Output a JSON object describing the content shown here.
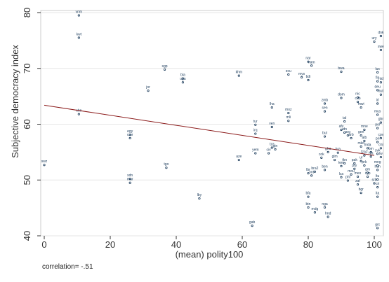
{
  "chart_data": {
    "type": "scatter",
    "xlabel": "(mean) polity100",
    "ylabel": "Subjective democracy index",
    "xlim": [
      0,
      100
    ],
    "ylim": [
      40,
      80
    ],
    "xticks": [
      "0",
      "20",
      "40",
      "60",
      "80",
      "100"
    ],
    "yticks": [
      "40",
      "50",
      "60",
      "70",
      "80"
    ],
    "fit_line": {
      "x": [
        0,
        100
      ],
      "y": [
        63.4,
        54.4
      ]
    },
    "footnote": "correlation= -.51",
    "points": [
      {
        "label": "vnm",
        "x": 10.5,
        "y": 79.5
      },
      {
        "label": "kwt",
        "x": 10.5,
        "y": 75.5
      },
      {
        "label": "chn",
        "x": 10.5,
        "y": 61.8
      },
      {
        "label": "swz",
        "x": 0,
        "y": 52.7
      },
      {
        "label": "sgp",
        "x": 36.5,
        "y": 69.8
      },
      {
        "label": "jor",
        "x": 31.5,
        "y": 66.0
      },
      {
        "label": "bla",
        "x": 42,
        "y": 68.2
      },
      {
        "label": "uga",
        "x": 42,
        "y": 67.5
      },
      {
        "label": "egy",
        "x": 26,
        "y": 58.1
      },
      {
        "label": "cmr",
        "x": 26,
        "y": 57.5
      },
      {
        "label": "tgo",
        "x": 37,
        "y": 52.2
      },
      {
        "label": "sdn",
        "x": 26,
        "y": 50.2
      },
      {
        "label": "mar",
        "x": 26,
        "y": 49.5
      },
      {
        "label": "lby",
        "x": 47,
        "y": 46.7
      },
      {
        "label": "khm",
        "x": 59,
        "y": 68.7
      },
      {
        "label": "tur",
        "x": 64,
        "y": 59.9
      },
      {
        "label": "irq",
        "x": 64,
        "y": 58.3
      },
      {
        "label": "yem",
        "x": 64,
        "y": 54.8
      },
      {
        "label": "aze",
        "x": 59,
        "y": 53.6
      },
      {
        "label": "gab",
        "x": 63,
        "y": 41.8
      },
      {
        "label": "lha",
        "x": 69,
        "y": 63.0
      },
      {
        "label": "ven",
        "x": 69,
        "y": 59.5
      },
      {
        "label": "gin",
        "x": 70,
        "y": 55.5
      },
      {
        "label": "tza",
        "x": 69,
        "y": 55.8
      },
      {
        "label": "civ",
        "x": 68,
        "y": 54.8
      },
      {
        "label": "ecu",
        "x": 74,
        "y": 68.9
      },
      {
        "label": "mys",
        "x": 78,
        "y": 68.4
      },
      {
        "label": "nar",
        "x": 80,
        "y": 71.2
      },
      {
        "label": "nam",
        "x": 81,
        "y": 70.5
      },
      {
        "label": "bdi",
        "x": 80,
        "y": 67.9
      },
      {
        "label": "moz",
        "x": 74,
        "y": 62.0
      },
      {
        "label": "mli",
        "x": 74,
        "y": 60.6
      },
      {
        "label": "zmb",
        "x": 85,
        "y": 63.7
      },
      {
        "label": "sen",
        "x": 85,
        "y": 62.3
      },
      {
        "label": "bwa",
        "x": 90,
        "y": 69.4
      },
      {
        "label": "dom",
        "x": 90,
        "y": 64.7
      },
      {
        "label": "tal",
        "x": 91,
        "y": 60.5
      },
      {
        "label": "afv",
        "x": 90,
        "y": 59.0
      },
      {
        "label": "idn",
        "x": 91,
        "y": 58.5
      },
      {
        "label": "arg",
        "x": 92,
        "y": 58.0
      },
      {
        "label": "arb",
        "x": 93,
        "y": 57.5
      },
      {
        "label": "bul",
        "x": 85,
        "y": 57.8
      },
      {
        "label": "gha",
        "x": 86,
        "y": 55.0
      },
      {
        "label": "cok",
        "x": 84,
        "y": 54.0
      },
      {
        "label": "ben",
        "x": 85,
        "y": 51.8
      },
      {
        "label": "glm",
        "x": 88,
        "y": 53.6
      },
      {
        "label": "bra",
        "x": 89,
        "y": 54.9
      },
      {
        "label": "tkn",
        "x": 91,
        "y": 53.0
      },
      {
        "label": "ken",
        "x": 90,
        "y": 52.5
      },
      {
        "label": "bra2",
        "x": 82,
        "y": 51.5
      },
      {
        "label": "lbr",
        "x": 80,
        "y": 51.2
      },
      {
        "label": "vnt",
        "x": 81,
        "y": 50.8
      },
      {
        "label": "lca",
        "x": 90,
        "y": 50.5
      },
      {
        "label": "pry",
        "x": 94,
        "y": 52.0
      },
      {
        "label": "phl",
        "x": 92,
        "y": 49.9
      },
      {
        "label": "mex",
        "x": 95,
        "y": 50.6
      },
      {
        "label": "mou",
        "x": 93,
        "y": 51.0
      },
      {
        "label": "zaf",
        "x": 95,
        "y": 49.2
      },
      {
        "label": "bgr",
        "x": 96,
        "y": 47.7
      },
      {
        "label": "bfa",
        "x": 80,
        "y": 47.0
      },
      {
        "label": "btn",
        "x": 80,
        "y": 45.1
      },
      {
        "label": "mdg",
        "x": 82,
        "y": 44.2
      },
      {
        "label": "nga",
        "x": 85,
        "y": 45.1
      },
      {
        "label": "hnd",
        "x": 86,
        "y": 43.4
      },
      {
        "label": "nic",
        "x": 95,
        "y": 64.8
      },
      {
        "label": "cub",
        "x": 95,
        "y": 64.0
      },
      {
        "label": "mwi",
        "x": 96,
        "y": 63.0
      },
      {
        "label": "mne",
        "x": 97,
        "y": 59.0
      },
      {
        "label": "gen",
        "x": 96,
        "y": 58.0
      },
      {
        "label": "mkd",
        "x": 96,
        "y": 56.0
      },
      {
        "label": "mda",
        "x": 98,
        "y": 55.7
      },
      {
        "label": "alb",
        "x": 97,
        "y": 57.0
      },
      {
        "label": "bm",
        "x": 99,
        "y": 55.0
      },
      {
        "label": "tza2",
        "x": 97,
        "y": 54.4
      },
      {
        "label": "lva",
        "x": 99,
        "y": 54.2
      },
      {
        "label": "ur",
        "x": 96,
        "y": 53.4
      },
      {
        "label": "pak",
        "x": 94,
        "y": 53.0
      },
      {
        "label": "prk",
        "x": 97,
        "y": 52.6
      },
      {
        "label": "gm",
        "x": 98,
        "y": 51.3
      },
      {
        "label": "cyp",
        "x": 98,
        "y": 50.6
      },
      {
        "label": "mng",
        "x": 101,
        "y": 52.6
      },
      {
        "label": "hun",
        "x": 101,
        "y": 51.8
      },
      {
        "label": "ltu",
        "x": 101,
        "y": 50.1
      },
      {
        "label": "srb",
        "x": 100,
        "y": 49.4
      },
      {
        "label": "cri",
        "x": 101,
        "y": 48.7
      },
      {
        "label": "ita",
        "x": 101,
        "y": 47.0
      },
      {
        "label": "grc",
        "x": 101,
        "y": 41.4
      },
      {
        "label": "dnk",
        "x": 102,
        "y": 75.8
      },
      {
        "label": "ury",
        "x": 100,
        "y": 74.8
      },
      {
        "label": "swe",
        "x": 102,
        "y": 73.3
      },
      {
        "label": "lux",
        "x": 101,
        "y": 69.3
      },
      {
        "label": "fin",
        "x": 101,
        "y": 67.7
      },
      {
        "label": "nld",
        "x": 102,
        "y": 67.5
      },
      {
        "label": "deu",
        "x": 101,
        "y": 66.1
      },
      {
        "label": "aut",
        "x": 102,
        "y": 65.3
      },
      {
        "label": "irl",
        "x": 101,
        "y": 63.7
      },
      {
        "label": "mus",
        "x": 101,
        "y": 61.7
      },
      {
        "label": "gbr",
        "x": 102,
        "y": 60.3
      },
      {
        "label": "pol",
        "x": 101,
        "y": 59.3
      },
      {
        "label": "cpv",
        "x": 102,
        "y": 57.5
      },
      {
        "label": "pri",
        "x": 101,
        "y": 56.8
      },
      {
        "label": "chl",
        "x": 102,
        "y": 55.7
      },
      {
        "label": "svk",
        "x": 101,
        "y": 54.7
      },
      {
        "label": "lw",
        "x": 102,
        "y": 54.1
      }
    ]
  }
}
